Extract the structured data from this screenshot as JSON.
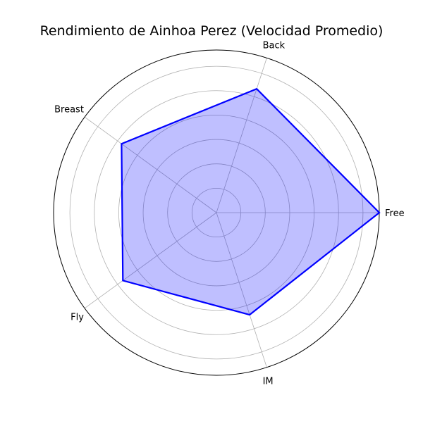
{
  "chart_data": {
    "type": "radar",
    "title": "Rendimiento de Ainhoa Perez (Velocidad Promedio)",
    "categories": [
      "Free",
      "Back",
      "Breast",
      "Fly",
      "IM"
    ],
    "series": [
      {
        "values": [
          1.0,
          0.8,
          0.72,
          0.71,
          0.66
        ]
      }
    ],
    "rlim": [
      0,
      1.0
    ],
    "rings": [
      0.15,
      0.3,
      0.45,
      0.6,
      0.75,
      0.9
    ],
    "grid": true,
    "colors": {
      "line": "#0000ff",
      "fill": "#0000ff",
      "fill_alpha": 0.25,
      "grid": "#b0b0b0",
      "frame": "#000000"
    }
  }
}
